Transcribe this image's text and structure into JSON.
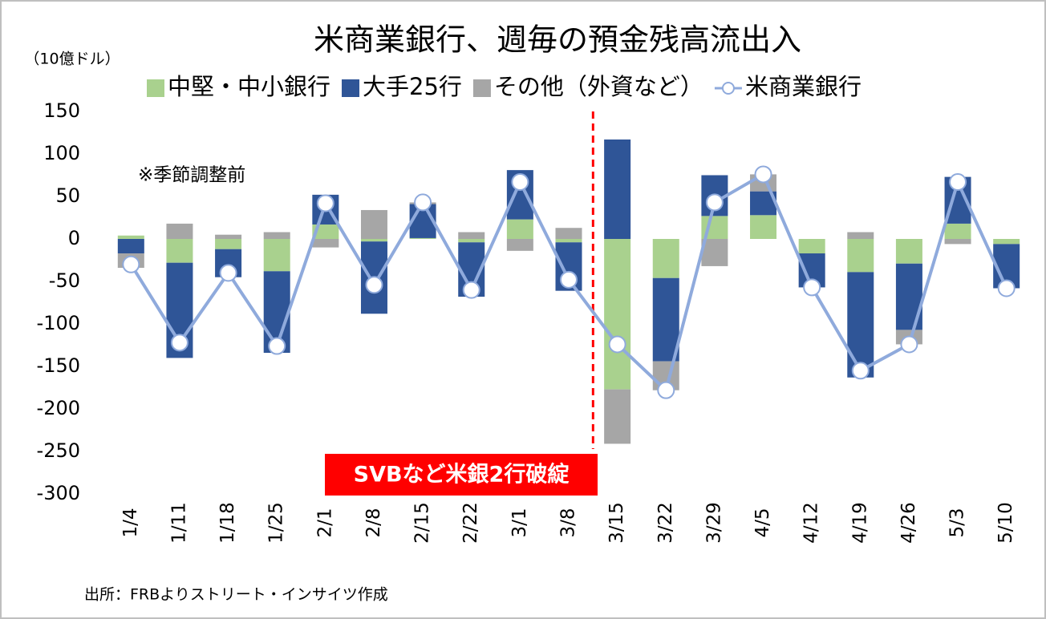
{
  "chart_data": {
    "type": "bar",
    "title": "米商業銀行、週毎の預金残高流出入",
    "y_axis_label": "（10億ドル）",
    "annotations": [
      "※季節調整前",
      "SVBなど米銀2行破綻"
    ],
    "source": "出所：FRBよりストリート・インサイツ作成",
    "stacked": true,
    "categories": [
      "1/4",
      "1/11",
      "1/18",
      "1/25",
      "2/1",
      "2/8",
      "2/15",
      "2/22",
      "3/1",
      "3/8",
      "3/15",
      "3/22",
      "3/29",
      "4/5",
      "4/12",
      "4/19",
      "4/26",
      "5/3",
      "5/10"
    ],
    "series": [
      {
        "name": "中堅・中小銀行",
        "color": "#a9d18e",
        "values": [
          4,
          -28,
          -12,
          -38,
          17,
          -3,
          1,
          -4,
          23,
          -4,
          -177,
          -46,
          27,
          28,
          -17,
          -39,
          -29,
          18,
          -6
        ]
      },
      {
        "name": "大手25行",
        "color": "#2f5597",
        "values": [
          -17,
          -112,
          -33,
          -96,
          35,
          -85,
          40,
          -64,
          58,
          -57,
          117,
          -98,
          48,
          28,
          -40,
          -124,
          -78,
          55,
          -52
        ]
      },
      {
        "name": "その他（外資など）",
        "color": "#a6a6a6",
        "values": [
          -17,
          18,
          5,
          8,
          -10,
          34,
          2,
          8,
          -14,
          13,
          -64,
          -34,
          -32,
          20,
          0,
          8,
          -17,
          -6,
          0
        ]
      },
      {
        "name": "米商業銀行",
        "type": "line",
        "color": "#8faadc",
        "values": [
          -30,
          -122,
          -40,
          -126,
          42,
          -54,
          43,
          -60,
          67,
          -48,
          -124,
          -178,
          43,
          76,
          -57,
          -155,
          -124,
          67,
          -58
        ]
      }
    ],
    "ylim": [
      -300,
      150
    ],
    "yticks": [
      -300,
      -250,
      -200,
      -150,
      -100,
      -50,
      0,
      50,
      100,
      150
    ],
    "legend": "top"
  }
}
